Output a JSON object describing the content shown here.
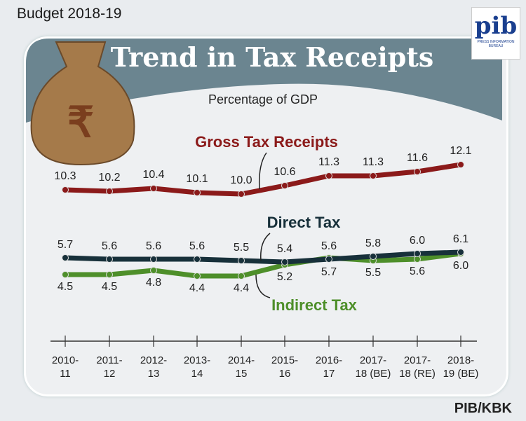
{
  "header": {
    "budget": "Budget 2018-19",
    "footer": "PIB/KBK",
    "logo_text": "pib",
    "logo_subtext": "PRESS INFORMATION BUREAU"
  },
  "chart_data": {
    "type": "line",
    "title": "Trend in Tax Receipts",
    "subtitle": "Percentage of GDP",
    "categories": [
      [
        "2010-",
        "11"
      ],
      [
        "2011-",
        "12"
      ],
      [
        "2012-",
        "13"
      ],
      [
        "2013-",
        "14"
      ],
      [
        "2014-",
        "15"
      ],
      [
        "2015-",
        "16"
      ],
      [
        "2016-",
        "17"
      ],
      [
        "2017-",
        "18 (BE)"
      ],
      [
        "2017-",
        "18 (RE)"
      ],
      [
        "2018-",
        "19 (BE)"
      ]
    ],
    "series": [
      {
        "name": "Gross Tax Receipts",
        "color": "#8b1a1a",
        "values": [
          10.3,
          10.2,
          10.4,
          10.1,
          10.0,
          10.6,
          11.3,
          11.3,
          11.6,
          12.1
        ]
      },
      {
        "name": "Direct Tax",
        "color": "#17303a",
        "values": [
          5.7,
          5.6,
          5.6,
          5.6,
          5.5,
          5.4,
          5.6,
          5.8,
          6.0,
          6.1
        ]
      },
      {
        "name": "Indirect Tax",
        "color": "#4e8f2a",
        "values": [
          4.5,
          4.5,
          4.8,
          4.4,
          4.4,
          5.2,
          5.7,
          5.5,
          5.6,
          6.0
        ]
      }
    ],
    "grid": false,
    "banner_color": "#6b8590"
  }
}
